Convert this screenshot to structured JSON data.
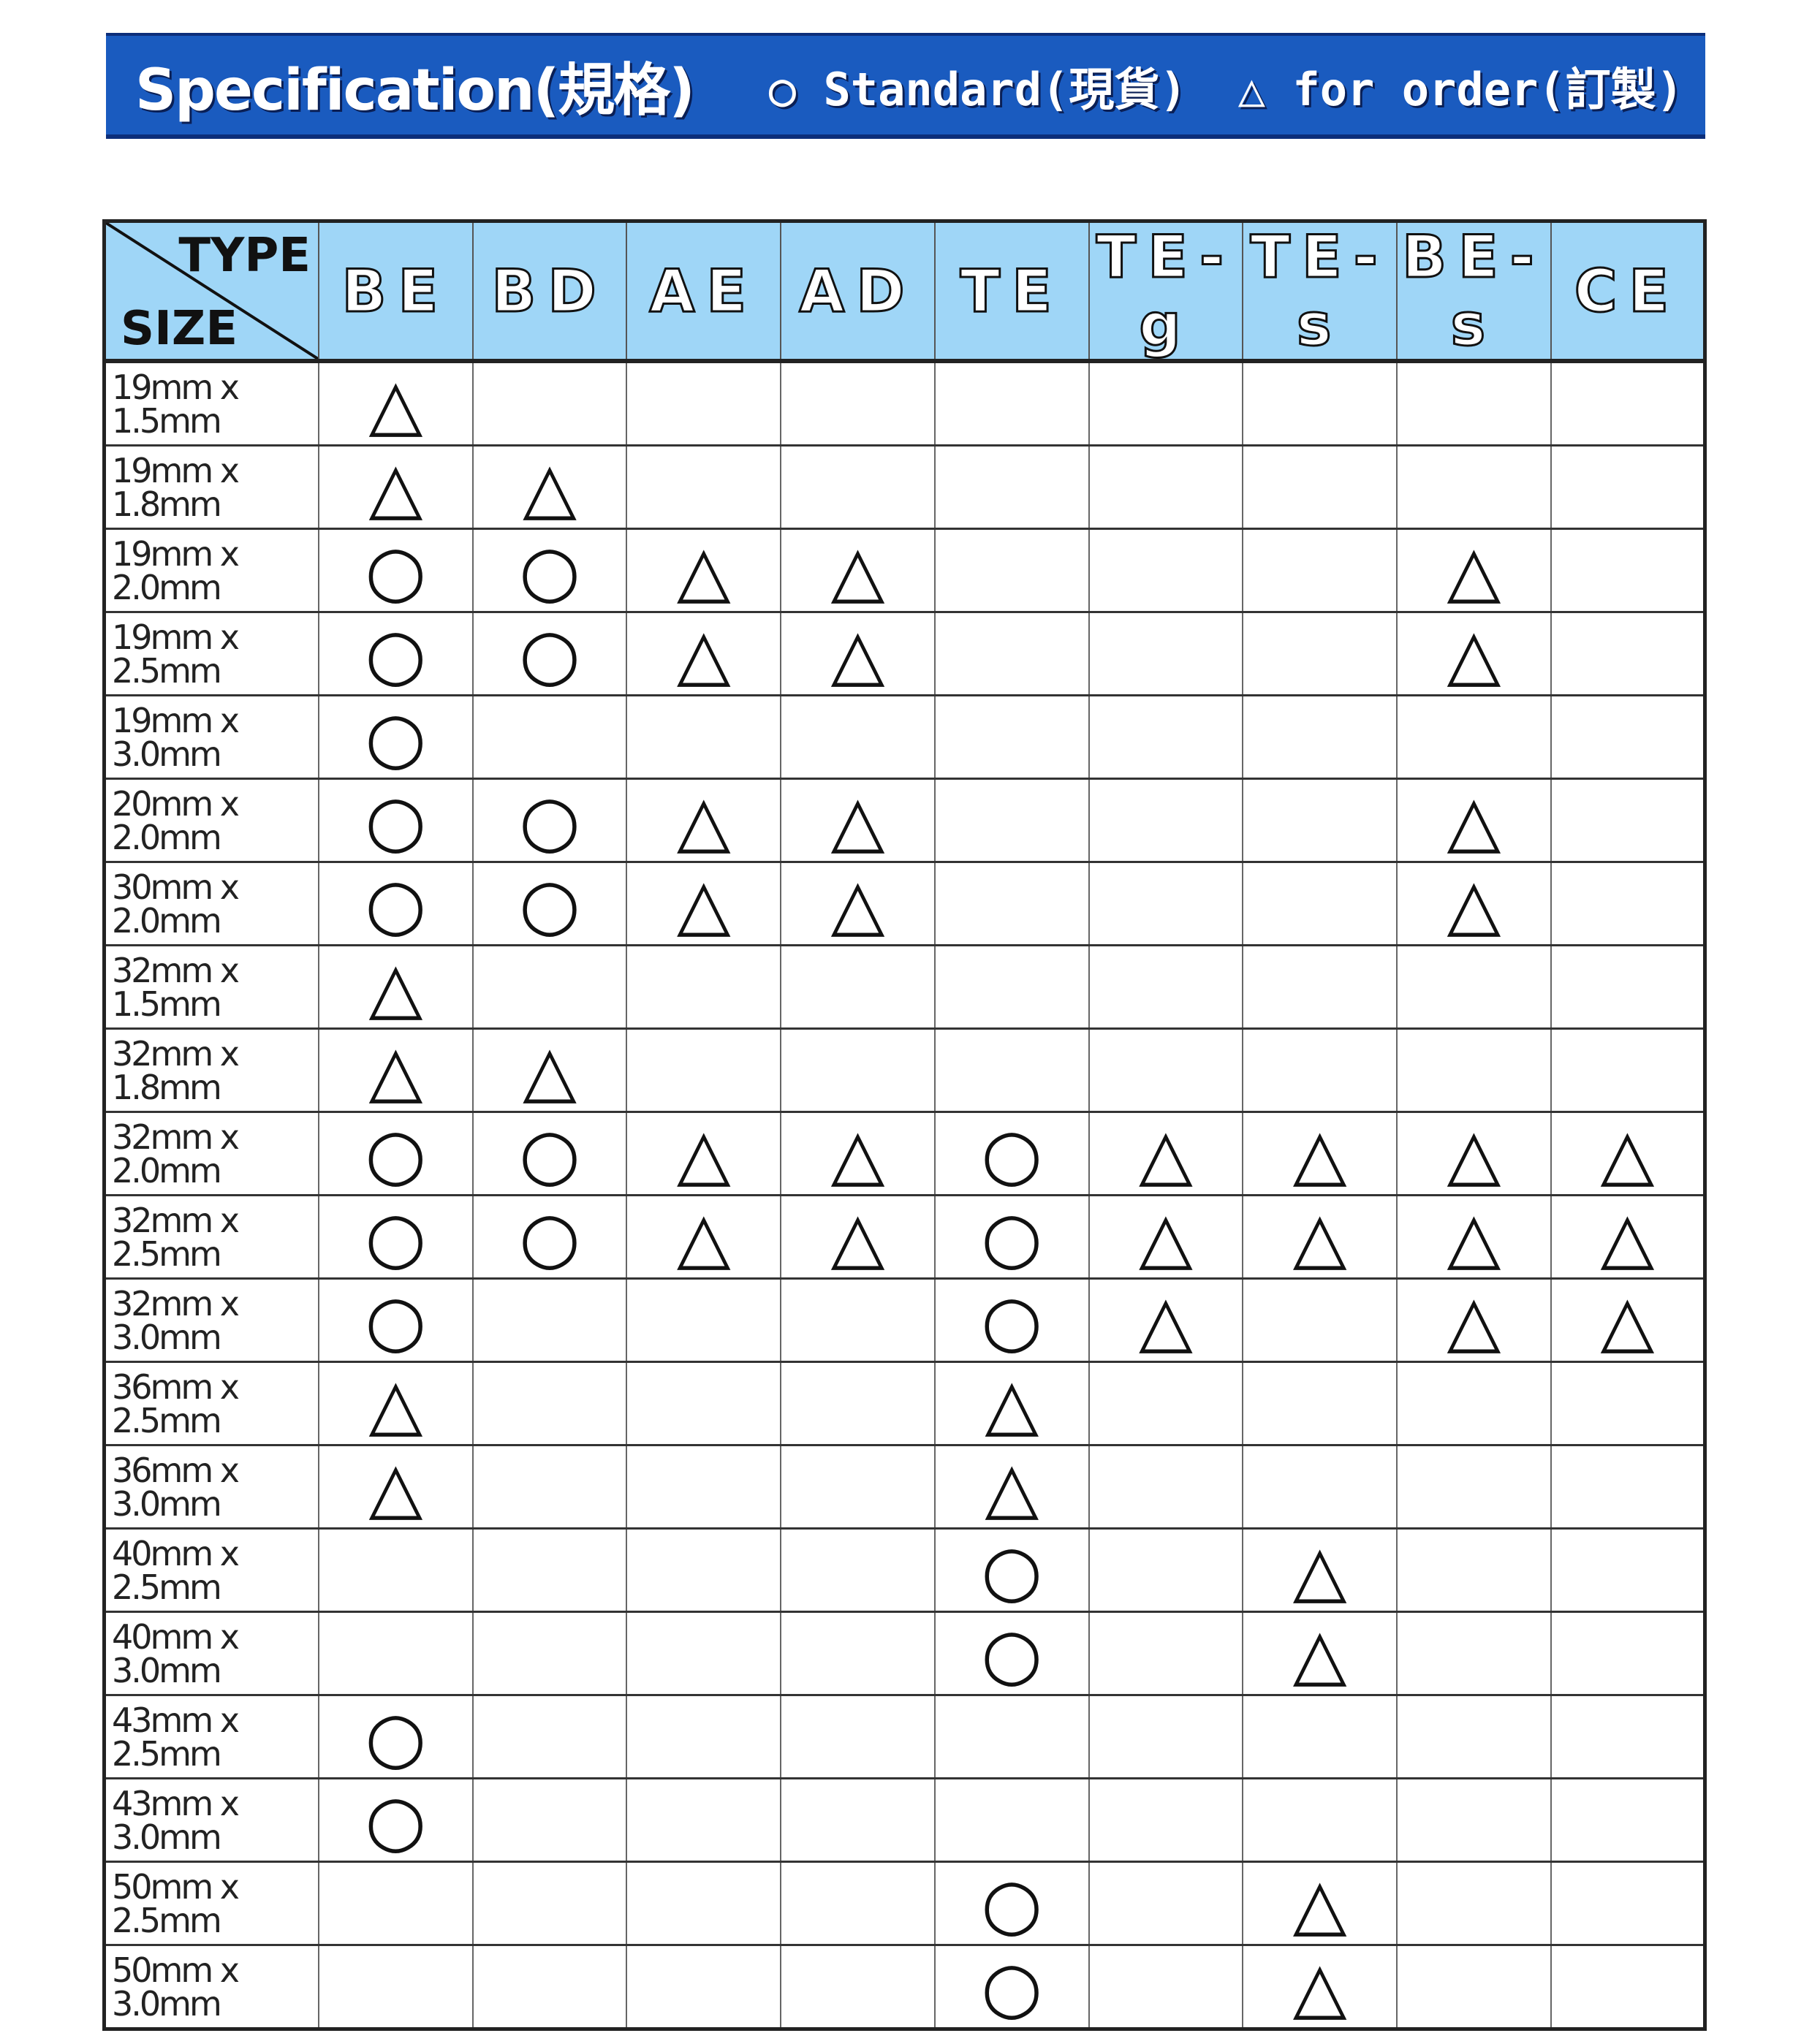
{
  "banner": {
    "title": "Specification(規格)",
    "legend_standard": "○ Standard(現貨)",
    "legend_order": "△ for order(訂製)",
    "color": "#1a5bbf"
  },
  "table": {
    "corner_type": "TYPE",
    "corner_size": "SIZE",
    "header_color": "#9fd6f7",
    "columns": [
      "BE",
      "BD",
      "AE",
      "AD",
      "TE",
      "TE-g",
      "TE-s",
      "BE-s",
      "CE"
    ],
    "rows": [
      {
        "size": "19mm x 1.5mm",
        "cells": [
          "△",
          "",
          "",
          "",
          "",
          "",
          "",
          "",
          ""
        ]
      },
      {
        "size": "19mm x 1.8mm",
        "cells": [
          "△",
          "△",
          "",
          "",
          "",
          "",
          "",
          "",
          ""
        ]
      },
      {
        "size": "19mm x 2.0mm",
        "cells": [
          "○",
          "○",
          "△",
          "△",
          "",
          "",
          "",
          "△",
          ""
        ]
      },
      {
        "size": "19mm x 2.5mm",
        "cells": [
          "○",
          "○",
          "△",
          "△",
          "",
          "",
          "",
          "△",
          ""
        ]
      },
      {
        "size": "19mm x 3.0mm",
        "cells": [
          "○",
          "",
          "",
          "",
          "",
          "",
          "",
          "",
          ""
        ]
      },
      {
        "size": "20mm x 2.0mm",
        "cells": [
          "○",
          "○",
          "△",
          "△",
          "",
          "",
          "",
          "△",
          ""
        ]
      },
      {
        "size": "30mm x 2.0mm",
        "cells": [
          "○",
          "○",
          "△",
          "△",
          "",
          "",
          "",
          "△",
          ""
        ]
      },
      {
        "size": "32mm x 1.5mm",
        "cells": [
          "△",
          "",
          "",
          "",
          "",
          "",
          "",
          "",
          ""
        ]
      },
      {
        "size": "32mm x 1.8mm",
        "cells": [
          "△",
          "△",
          "",
          "",
          "",
          "",
          "",
          "",
          ""
        ]
      },
      {
        "size": "32mm x 2.0mm",
        "cells": [
          "○",
          "○",
          "△",
          "△",
          "○",
          "△",
          "△",
          "△",
          "△"
        ]
      },
      {
        "size": "32mm x 2.5mm",
        "cells": [
          "○",
          "○",
          "△",
          "△",
          "○",
          "△",
          "△",
          "△",
          "△"
        ]
      },
      {
        "size": "32mm x 3.0mm",
        "cells": [
          "○",
          "",
          "",
          "",
          "○",
          "△",
          "",
          "△",
          "△"
        ]
      },
      {
        "size": "36mm x 2.5mm",
        "cells": [
          "△",
          "",
          "",
          "",
          "△",
          "",
          "",
          "",
          ""
        ]
      },
      {
        "size": "36mm x 3.0mm",
        "cells": [
          "△",
          "",
          "",
          "",
          "△",
          "",
          "",
          "",
          ""
        ]
      },
      {
        "size": "40mm x 2.5mm",
        "cells": [
          "",
          "",
          "",
          "",
          "○",
          "",
          "△",
          "",
          ""
        ]
      },
      {
        "size": "40mm x 3.0mm",
        "cells": [
          "",
          "",
          "",
          "",
          "○",
          "",
          "△",
          "",
          ""
        ]
      },
      {
        "size": "43mm x 2.5mm",
        "cells": [
          "○",
          "",
          "",
          "",
          "",
          "",
          "",
          "",
          ""
        ]
      },
      {
        "size": "43mm x 3.0mm",
        "cells": [
          "○",
          "",
          "",
          "",
          "",
          "",
          "",
          "",
          ""
        ]
      },
      {
        "size": "50mm x 2.5mm",
        "cells": [
          "",
          "",
          "",
          "",
          "○",
          "",
          "△",
          "",
          ""
        ]
      },
      {
        "size": "50mm x 3.0mm",
        "cells": [
          "",
          "",
          "",
          "",
          "○",
          "",
          "△",
          "",
          ""
        ]
      }
    ]
  }
}
